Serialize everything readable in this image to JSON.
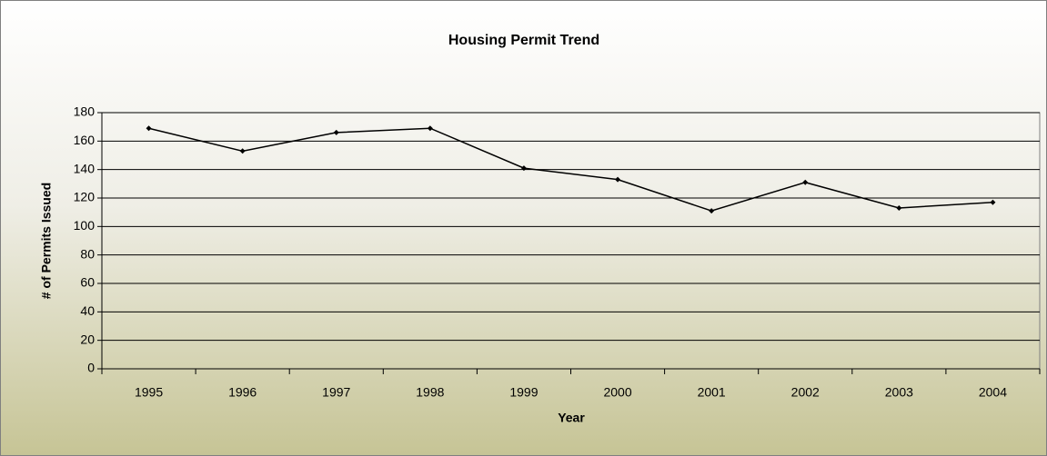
{
  "chart_data": {
    "type": "line",
    "title": "Housing Permit Trend",
    "x_label": "Year",
    "y_label": "# of Permits Issued",
    "categories": [
      "1995",
      "1996",
      "1997",
      "1998",
      "1999",
      "2000",
      "2001",
      "2002",
      "2003",
      "2004"
    ],
    "values": [
      169,
      153,
      166,
      169,
      141,
      133,
      111,
      131,
      113,
      117
    ],
    "color": "#000000",
    "ylim": [
      0,
      180
    ],
    "yticks": [
      0,
      20,
      40,
      60,
      80,
      100,
      120,
      140,
      160,
      180
    ],
    "grid": true
  }
}
